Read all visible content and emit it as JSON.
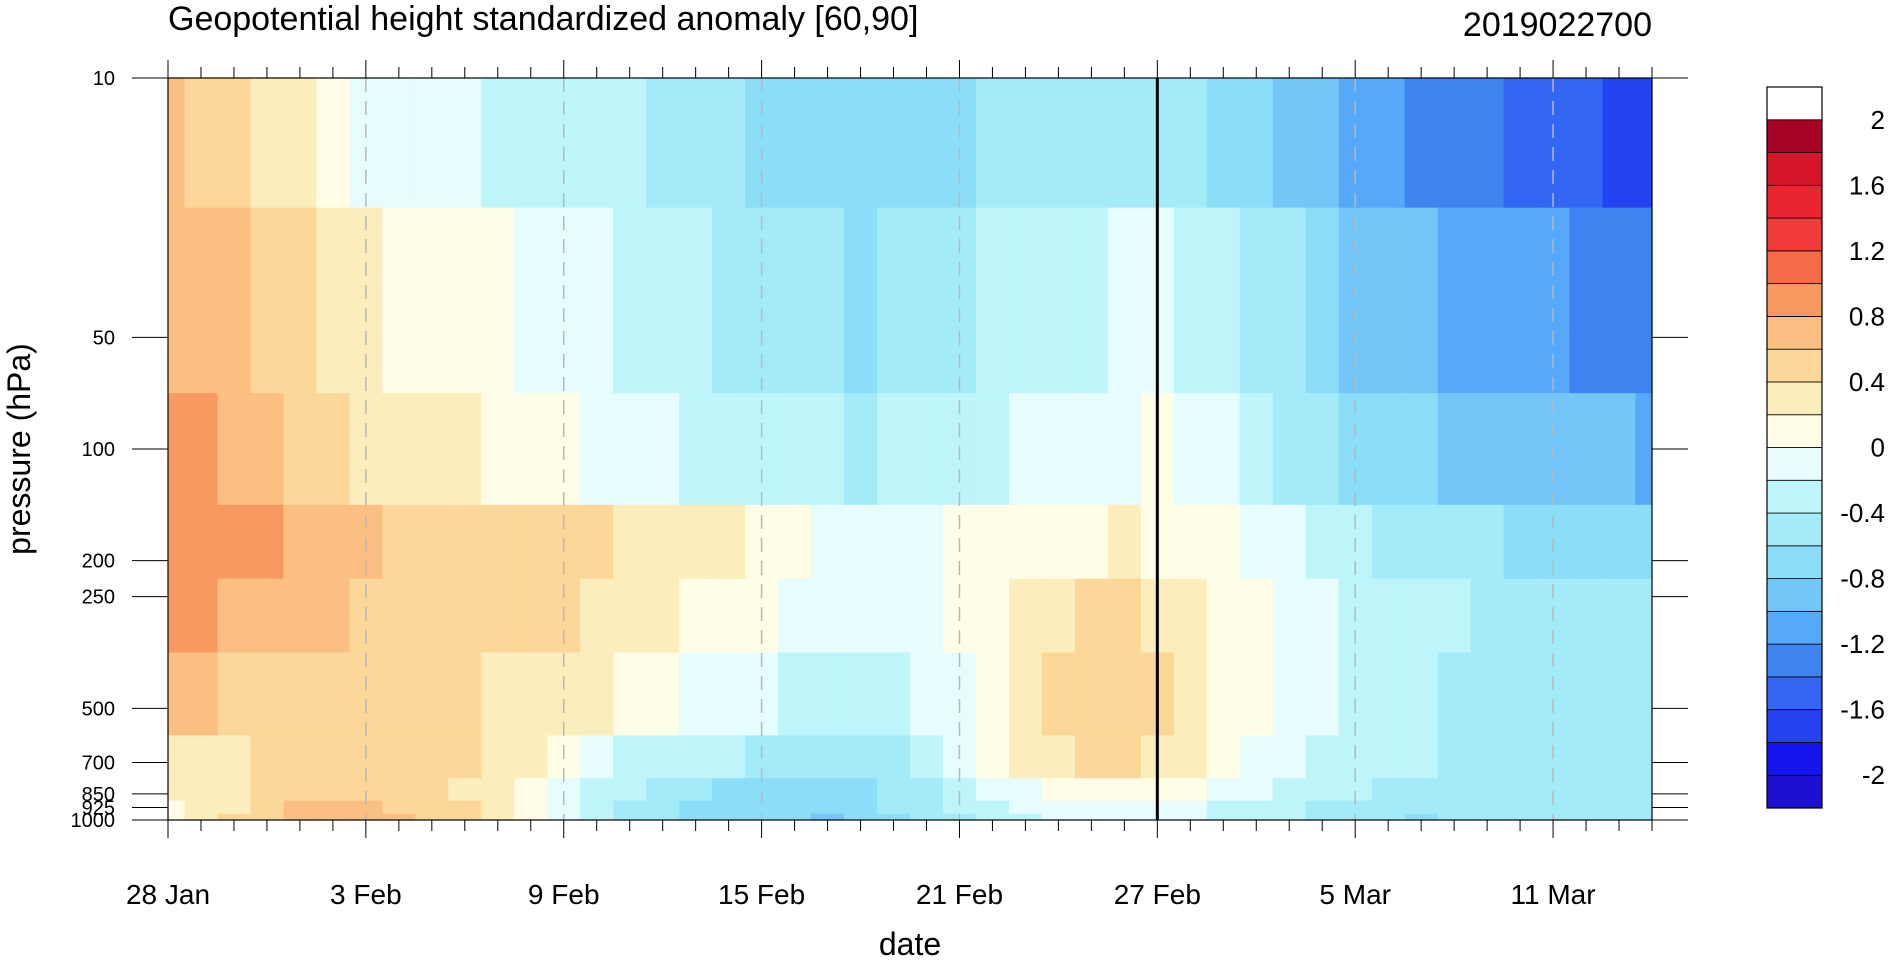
{
  "chart_data": {
    "type": "heatmap",
    "title": "Geopotential height standardized anomaly [60,90]",
    "run_id": "2019022700",
    "xlabel": "date",
    "ylabel": "pressure (hPa)",
    "x_tick_labels": [
      "28 Jan",
      "3 Feb",
      "9 Feb",
      "15 Feb",
      "21 Feb",
      "27 Feb",
      "5 Mar",
      "11 Mar"
    ],
    "y_tick_labels": [
      "10",
      "50",
      "100",
      "200",
      "250",
      "500",
      "700",
      "850",
      "925",
      "1000"
    ],
    "pressure_levels": [
      10,
      50,
      100,
      200,
      250,
      500,
      700,
      850,
      925,
      1000
    ],
    "x_days": [
      0,
      1,
      2,
      3,
      4,
      5,
      6,
      7,
      8,
      9,
      10,
      11,
      12,
      13,
      14,
      15,
      16,
      17,
      18,
      19,
      20,
      21,
      22,
      23,
      24,
      25,
      26,
      27,
      28,
      29,
      30,
      31,
      32,
      33,
      34,
      35,
      36,
      37,
      38,
      39,
      40,
      41,
      42,
      43,
      44,
      45
    ],
    "x_range": [
      0,
      45
    ],
    "initialization_day": 30,
    "colorbar": {
      "levels": [
        -2.2,
        -2,
        -1.8,
        -1.6,
        -1.4,
        -1.2,
        -1,
        -0.8,
        -0.6,
        -0.4,
        -0.2,
        0,
        0.2,
        0.4,
        0.6,
        0.8,
        1,
        1.2,
        1.4,
        1.6,
        1.8,
        2,
        2.2
      ],
      "colors": [
        "#1b10cf",
        "#1515f0",
        "#2442f2",
        "#3366f2",
        "#3f83f0",
        "#56a8f8",
        "#73c6f7",
        "#8cdef8",
        "#a4ebf9",
        "#bdf5fb",
        "#e6fcfd",
        "#fffde6",
        "#fcedbd",
        "#fbd799",
        "#fbbf81",
        "#f99962",
        "#f46b47",
        "#f23c3c",
        "#e92630",
        "#d51628",
        "#a50224"
      ],
      "tick_labels": [
        "2",
        "1.6",
        "1.2",
        "0.8",
        "0.4",
        "0",
        "-0.4",
        "-0.8",
        "-1.2",
        "-1.6",
        "-2"
      ],
      "tick_values": [
        2,
        1.6,
        1.2,
        0.8,
        0.4,
        0,
        -0.4,
        -0.8,
        -1.2,
        -1.6,
        -2
      ]
    },
    "anomaly": [
      [
        0.63,
        0.59,
        0.48,
        0.34,
        0.2,
        0.06,
        -0.05,
        -0.11,
        -0.14,
        -0.18,
        -0.22,
        -0.26,
        -0.3,
        -0.34,
        -0.39,
        -0.45,
        -0.53,
        -0.57,
        -0.61,
        -0.65,
        -0.68,
        -0.74,
        -0.73,
        -0.71,
        -0.64,
        -0.55,
        -0.5,
        -0.46,
        -0.43,
        -0.43,
        -0.45,
        -0.53,
        -0.64,
        -0.75,
        -0.86,
        -0.97,
        -1.08,
        -1.18,
        -1.26,
        -1.32,
        -1.37,
        -1.42,
        -1.46,
        -1.55,
        -1.65,
        -1.71
      ],
      [
        0.77,
        0.76,
        0.68,
        0.56,
        0.44,
        0.32,
        0.22,
        0.14,
        0.1,
        0.05,
        0.0,
        -0.05,
        -0.11,
        -0.16,
        -0.22,
        -0.29,
        -0.35,
        -0.41,
        -0.46,
        -0.52,
        -0.59,
        -0.64,
        -0.6,
        -0.55,
        -0.48,
        -0.4,
        -0.34,
        -0.28,
        -0.22,
        -0.18,
        -0.16,
        -0.24,
        -0.35,
        -0.47,
        -0.59,
        -0.71,
        -0.82,
        -0.92,
        -1.0,
        -1.06,
        -1.11,
        -1.15,
        -1.18,
        -1.23,
        -1.29,
        -1.33
      ],
      [
        0.85,
        0.84,
        0.78,
        0.68,
        0.57,
        0.46,
        0.36,
        0.28,
        0.24,
        0.2,
        0.15,
        0.09,
        0.03,
        -0.03,
        -0.09,
        -0.16,
        -0.22,
        -0.27,
        -0.32,
        -0.36,
        -0.4,
        -0.41,
        -0.37,
        -0.33,
        -0.27,
        -0.22,
        -0.17,
        -0.11,
        -0.06,
        -0.02,
        0.0,
        -0.08,
        -0.19,
        -0.3,
        -0.42,
        -0.53,
        -0.63,
        -0.71,
        -0.78,
        -0.83,
        -0.87,
        -0.9,
        -0.92,
        -0.95,
        -0.99,
        -1.01
      ],
      [
        0.92,
        0.9,
        0.86,
        0.8,
        0.74,
        0.68,
        0.63,
        0.58,
        0.56,
        0.56,
        0.55,
        0.51,
        0.48,
        0.43,
        0.39,
        0.35,
        0.29,
        0.2,
        0.1,
        0.03,
        -0.04,
        -0.07,
        -0.05,
        -0.02,
        0.02,
        0.05,
        0.09,
        0.13,
        0.17,
        0.21,
        0.18,
        0.13,
        0.05,
        -0.05,
        -0.15,
        -0.25,
        -0.36,
        -0.43,
        -0.5,
        -0.53,
        -0.57,
        -0.61,
        -0.65,
        -0.67,
        -0.7,
        -0.7
      ],
      [
        0.86,
        0.84,
        0.79,
        0.73,
        0.68,
        0.63,
        0.58,
        0.54,
        0.51,
        0.5,
        0.47,
        0.43,
        0.4,
        0.35,
        0.29,
        0.24,
        0.18,
        0.1,
        0.02,
        -0.07,
        -0.14,
        -0.17,
        -0.13,
        -0.05,
        0.05,
        0.17,
        0.28,
        0.39,
        0.46,
        0.46,
        0.38,
        0.28,
        0.17,
        0.08,
        -0.02,
        -0.11,
        -0.21,
        -0.29,
        -0.35,
        -0.4,
        -0.44,
        -0.47,
        -0.5,
        -0.53,
        -0.56,
        -0.58
      ],
      [
        0.66,
        0.62,
        0.57,
        0.53,
        0.5,
        0.48,
        0.46,
        0.44,
        0.42,
        0.41,
        0.38,
        0.34,
        0.3,
        0.23,
        0.14,
        0.06,
        -0.04,
        -0.12,
        -0.18,
        -0.24,
        -0.31,
        -0.32,
        -0.27,
        -0.18,
        -0.06,
        0.1,
        0.26,
        0.41,
        0.5,
        0.51,
        0.42,
        0.3,
        0.16,
        0.06,
        -0.06,
        -0.16,
        -0.26,
        -0.33,
        -0.39,
        -0.43,
        -0.47,
        -0.5,
        -0.53,
        -0.55,
        -0.58,
        -0.6
      ],
      [
        0.31,
        0.33,
        0.37,
        0.41,
        0.44,
        0.46,
        0.46,
        0.45,
        0.43,
        0.4,
        0.34,
        0.22,
        0.07,
        -0.12,
        -0.25,
        -0.33,
        -0.36,
        -0.39,
        -0.43,
        -0.47,
        -0.51,
        -0.49,
        -0.41,
        -0.28,
        -0.14,
        0.05,
        0.2,
        0.33,
        0.4,
        0.4,
        0.33,
        0.21,
        0.08,
        -0.04,
        -0.14,
        -0.22,
        -0.29,
        -0.35,
        -0.39,
        -0.42,
        -0.44,
        -0.45,
        -0.47,
        -0.49,
        -0.5,
        -0.51
      ],
      [
        0.21,
        0.23,
        0.34,
        0.45,
        0.55,
        0.56,
        0.54,
        0.5,
        0.44,
        0.37,
        0.26,
        0.13,
        -0.05,
        -0.23,
        -0.39,
        -0.49,
        -0.57,
        -0.63,
        -0.68,
        -0.71,
        -0.74,
        -0.68,
        -0.56,
        -0.44,
        -0.3,
        -0.15,
        -0.02,
        0.08,
        0.16,
        0.16,
        0.1,
        0.01,
        -0.09,
        -0.19,
        -0.27,
        -0.34,
        -0.4,
        -0.45,
        -0.48,
        -0.49,
        -0.49,
        -0.49,
        -0.49,
        -0.49,
        -0.48,
        -0.47
      ],
      [
        0.19,
        0.27,
        0.39,
        0.51,
        0.6,
        0.62,
        0.61,
        0.57,
        0.5,
        0.42,
        0.3,
        0.15,
        -0.05,
        -0.27,
        -0.45,
        -0.55,
        -0.61,
        -0.67,
        -0.72,
        -0.76,
        -0.79,
        -0.72,
        -0.6,
        -0.5,
        -0.39,
        -0.28,
        -0.18,
        -0.1,
        -0.04,
        -0.04,
        -0.09,
        -0.15,
        -0.22,
        -0.3,
        -0.38,
        -0.46,
        -0.52,
        -0.56,
        -0.58,
        -0.58,
        -0.56,
        -0.55,
        -0.54,
        -0.53,
        -0.52,
        -0.51
      ],
      [
        0.19,
        0.28,
        0.42,
        0.55,
        0.63,
        0.66,
        0.65,
        0.61,
        0.53,
        0.44,
        0.32,
        0.16,
        -0.05,
        -0.29,
        -0.48,
        -0.59,
        -0.65,
        -0.71,
        -0.76,
        -0.8,
        -0.83,
        -0.76,
        -0.63,
        -0.52,
        -0.41,
        -0.31,
        -0.23,
        -0.15,
        -0.09,
        -0.08,
        -0.1,
        -0.15,
        -0.22,
        -0.31,
        -0.4,
        -0.49,
        -0.56,
        -0.6,
        -0.61,
        -0.6,
        -0.58,
        -0.56,
        -0.55,
        -0.54,
        -0.53,
        -0.52
      ]
    ]
  }
}
